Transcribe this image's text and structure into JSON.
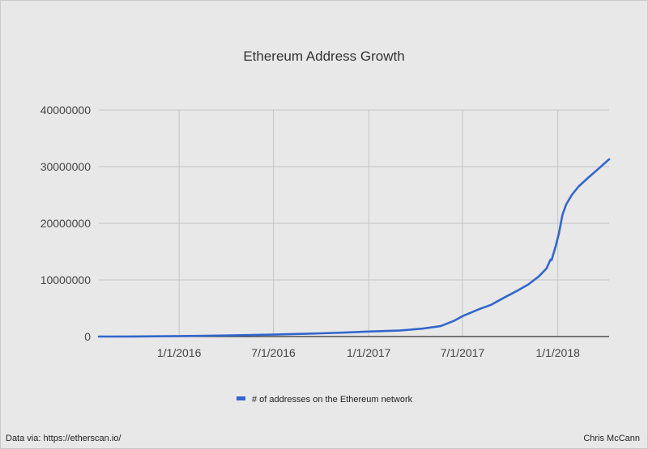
{
  "chart_data": {
    "type": "line",
    "title": "Ethereum Address Growth",
    "xlabel": "",
    "ylabel": "",
    "x_range": [
      "2015-07-30",
      "2018-04-10"
    ],
    "xticks": [
      {
        "date": "2016-01-01",
        "label": "1/1/2016"
      },
      {
        "date": "2016-07-01",
        "label": "7/1/2016"
      },
      {
        "date": "2017-01-01",
        "label": "1/1/2017"
      },
      {
        "date": "2017-07-01",
        "label": "7/1/2017"
      },
      {
        "date": "2018-01-01",
        "label": "1/1/2018"
      }
    ],
    "ylim": [
      0,
      40000000
    ],
    "yticks": [
      {
        "value": 0,
        "label": "0"
      },
      {
        "value": 10000000,
        "label": "10000000"
      },
      {
        "value": 20000000,
        "label": "20000000"
      },
      {
        "value": 30000000,
        "label": "30000000"
      },
      {
        "value": 40000000,
        "label": "40000000"
      }
    ],
    "grid": true,
    "legend_position": "bottom",
    "series": [
      {
        "name": "# of addresses on the Ethereum network",
        "color": "#3366cc",
        "points": [
          [
            "2015-07-30",
            0
          ],
          [
            "2015-10-01",
            20000
          ],
          [
            "2016-01-01",
            80000
          ],
          [
            "2016-04-01",
            190000
          ],
          [
            "2016-07-01",
            350000
          ],
          [
            "2016-10-01",
            570000
          ],
          [
            "2016-11-15",
            700000
          ],
          [
            "2017-01-01",
            880000
          ],
          [
            "2017-03-01",
            1050000
          ],
          [
            "2017-04-15",
            1400000
          ],
          [
            "2017-05-20",
            1850000
          ],
          [
            "2017-06-15",
            2800000
          ],
          [
            "2017-07-01",
            3600000
          ],
          [
            "2017-08-01",
            4800000
          ],
          [
            "2017-08-25",
            5600000
          ],
          [
            "2017-09-20",
            6900000
          ],
          [
            "2017-10-15",
            8100000
          ],
          [
            "2017-11-05",
            9200000
          ],
          [
            "2017-11-25",
            10600000
          ],
          [
            "2017-12-10",
            12000000
          ],
          [
            "2017-12-18",
            13600000
          ],
          [
            "2017-12-20",
            13500000
          ],
          [
            "2017-12-28",
            16000000
          ],
          [
            "2018-01-03",
            18200000
          ],
          [
            "2018-01-10",
            21500000
          ],
          [
            "2018-01-17",
            23300000
          ],
          [
            "2018-01-28",
            25000000
          ],
          [
            "2018-02-10",
            26500000
          ],
          [
            "2018-02-28",
            28000000
          ],
          [
            "2018-03-20",
            29600000
          ],
          [
            "2018-04-10",
            31300000
          ]
        ]
      }
    ]
  },
  "footer": {
    "source": "Data via: https://etherscan.io/",
    "author": "Chris McCann"
  }
}
